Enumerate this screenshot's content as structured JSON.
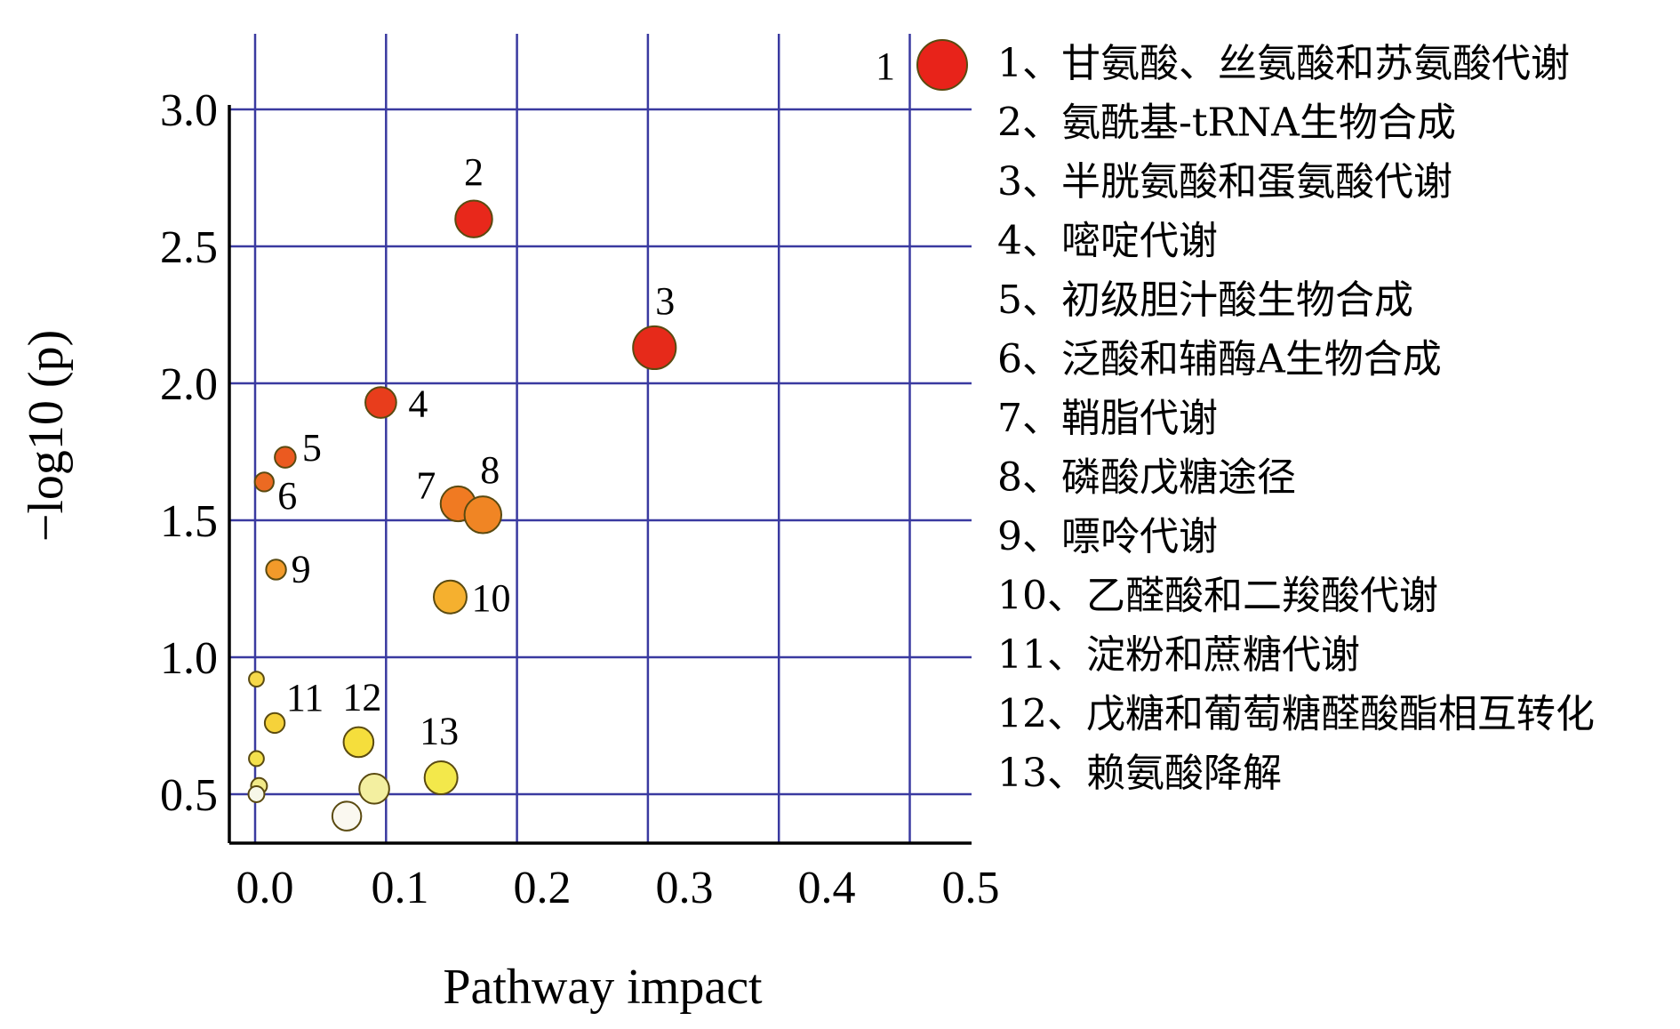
{
  "chart_data": {
    "type": "scatter",
    "title": "",
    "xlabel": "Pathway impact",
    "ylabel": "−log10 (p)",
    "xlim": [
      -0.02,
      0.55
    ],
    "ylim": [
      0.32,
      3.1
    ],
    "grid": true,
    "legend_position": "right",
    "x_tick_values": [
      0.0,
      0.1,
      0.2,
      0.3,
      0.4,
      0.5
    ],
    "x_tick_labels": [
      "0.0",
      "0.1",
      "0.2",
      "0.3",
      "0.4",
      "0.5"
    ],
    "y_tick_values": [
      0.5,
      1.0,
      1.5,
      2.0,
      2.5,
      3.0
    ],
    "y_tick_labels": [
      "0.5",
      "1.0",
      "1.5",
      "2.0",
      "2.5",
      "3.0"
    ],
    "x_grid_values": [
      0.0,
      0.1,
      0.2,
      0.3,
      0.4,
      0.5
    ],
    "y_grid_values": [
      0.5,
      1.0,
      1.5,
      2.0,
      2.5,
      3.0
    ],
    "points": [
      {
        "label": "1",
        "x": 0.52,
        "y": 3.18,
        "size": 1.0,
        "color": "#e8231a"
      },
      {
        "label": "2",
        "x": 0.167,
        "y": 2.6,
        "size": 0.74,
        "color": "#e8281b"
      },
      {
        "label": "3",
        "x": 0.305,
        "y": 2.13,
        "size": 0.86,
        "color": "#e62a1a"
      },
      {
        "label": "4",
        "x": 0.096,
        "y": 1.93,
        "size": 0.62,
        "color": "#e83d1c"
      },
      {
        "label": "5",
        "x": 0.023,
        "y": 1.73,
        "size": 0.42,
        "color": "#eb5a20"
      },
      {
        "label": "6",
        "x": 0.007,
        "y": 1.64,
        "size": 0.38,
        "color": "#ec6a22"
      },
      {
        "label": "7",
        "x": 0.155,
        "y": 1.56,
        "size": 0.7,
        "color": "#f07a22"
      },
      {
        "label": "8",
        "x": 0.174,
        "y": 1.52,
        "size": 0.74,
        "color": "#f08524"
      },
      {
        "label": "9",
        "x": 0.016,
        "y": 1.32,
        "size": 0.4,
        "color": "#f29a2a"
      },
      {
        "label": "10",
        "x": 0.149,
        "y": 1.22,
        "size": 0.66,
        "color": "#f5b02f"
      },
      {
        "label": "11",
        "x": 0.015,
        "y": 0.76,
        "size": 0.4,
        "color": "#f6d23a"
      },
      {
        "label": "12",
        "x": 0.079,
        "y": 0.69,
        "size": 0.6,
        "color": "#f5de3c"
      },
      {
        "label": "13",
        "x": 0.142,
        "y": 0.56,
        "size": 0.66,
        "color": "#f3e84b"
      },
      {
        "label": "",
        "x": 0.001,
        "y": 0.92,
        "size": 0.3,
        "color": "#f6d84a"
      },
      {
        "label": "",
        "x": 0.001,
        "y": 0.63,
        "size": 0.3,
        "color": "#f4e04d"
      },
      {
        "label": "",
        "x": 0.003,
        "y": 0.53,
        "size": 0.32,
        "color": "#f2ea88"
      },
      {
        "label": "",
        "x": 0.001,
        "y": 0.5,
        "size": 0.32,
        "color": "#f7f7e8"
      },
      {
        "label": "",
        "x": 0.091,
        "y": 0.52,
        "size": 0.6,
        "color": "#f3efa0"
      },
      {
        "label": "",
        "x": 0.07,
        "y": 0.42,
        "size": 0.58,
        "color": "#faf8f0"
      }
    ],
    "legend": [
      "1、甘氨酸、丝氨酸和苏氨酸代谢",
      "2、氨酰基-tRNA生物合成",
      "3、半胱氨酸和蛋氨酸代谢",
      "4、嘧啶代谢",
      "5、初级胆汁酸生物合成",
      "6、泛酸和辅酶A生物合成",
      "7、鞘脂代谢",
      "8、磷酸戊糖途径",
      "9、嘌呤代谢",
      "10、乙醛酸和二羧酸代谢",
      "11、淀粉和蔗糖代谢",
      "12、戊糖和葡萄糖醛酸酯相互转化",
      "13、赖氨酸降解"
    ]
  }
}
